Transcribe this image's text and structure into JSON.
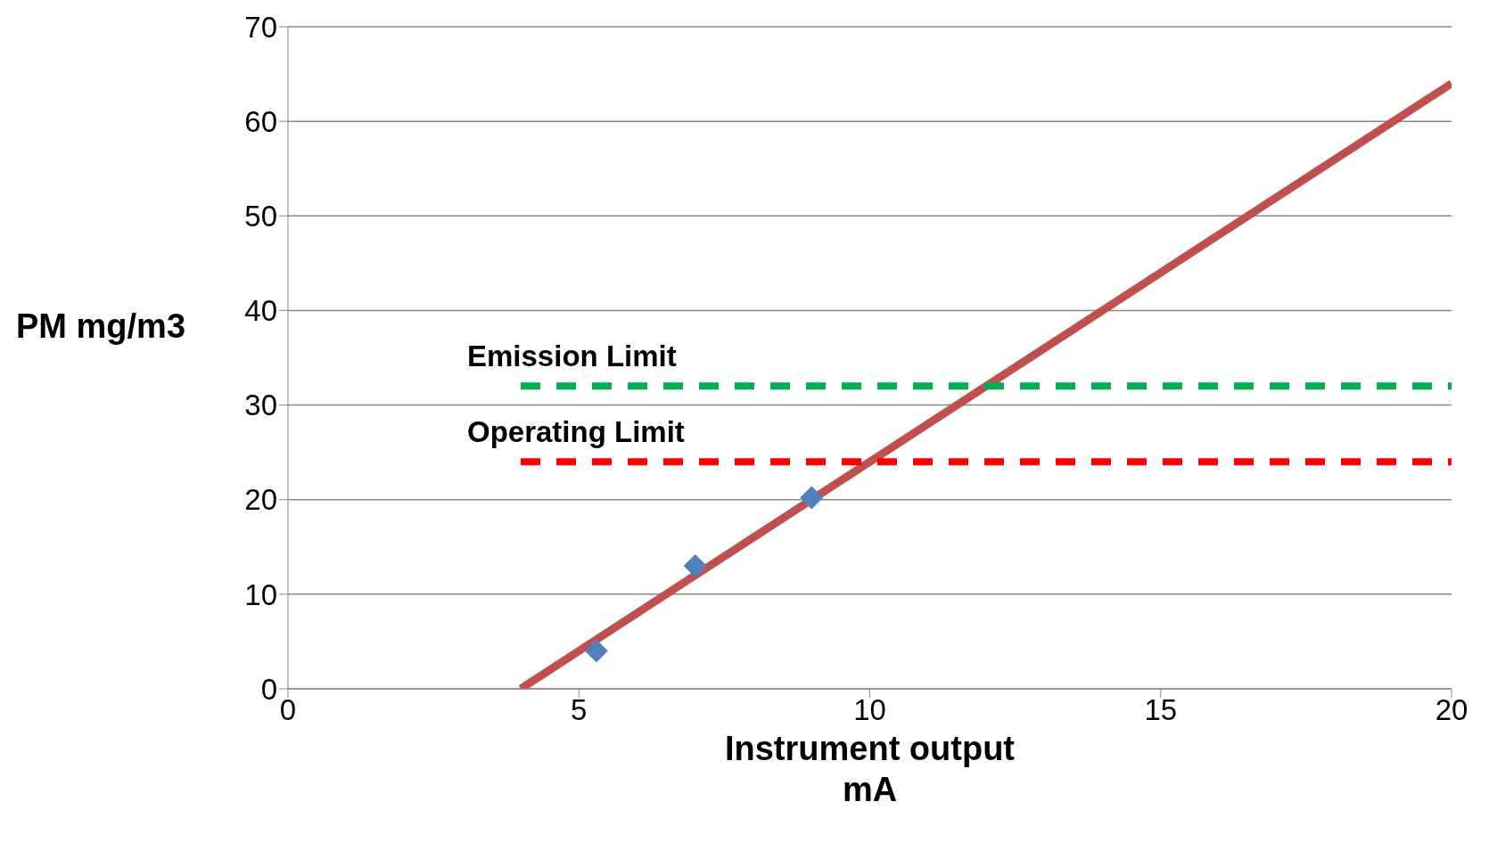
{
  "chart_data": {
    "type": "line",
    "xlabel": "Instrument output\nmA",
    "ylabel": "PM mg/m3",
    "xlim": [
      0,
      20
    ],
    "xticks": [
      0,
      5,
      10,
      15,
      20
    ],
    "ylim": [
      0,
      70
    ],
    "yticks": [
      0,
      10,
      20,
      30,
      40,
      50,
      60,
      70
    ],
    "grid": "y",
    "legend": false,
    "series": [
      {
        "type": "scatter",
        "color": "#4f81bd",
        "marker": "diamond",
        "x": [
          5.3,
          7,
          9
        ],
        "values": [
          4,
          13,
          20.2
        ]
      },
      {
        "color": "#c0504d",
        "marker": "none",
        "line_style": "solid",
        "x": [
          4,
          20
        ],
        "values": [
          0,
          64
        ]
      },
      {
        "name": "Emission Limit",
        "color": "#00b050",
        "marker": "none",
        "line_style": "dashed",
        "x": [
          4,
          20
        ],
        "values": [
          32,
          32
        ]
      },
      {
        "name": "Operating Limit",
        "color": "#ff0000",
        "marker": "none",
        "line_style": "dashed",
        "x": [
          4,
          20
        ],
        "values": [
          24,
          24
        ]
      }
    ]
  }
}
